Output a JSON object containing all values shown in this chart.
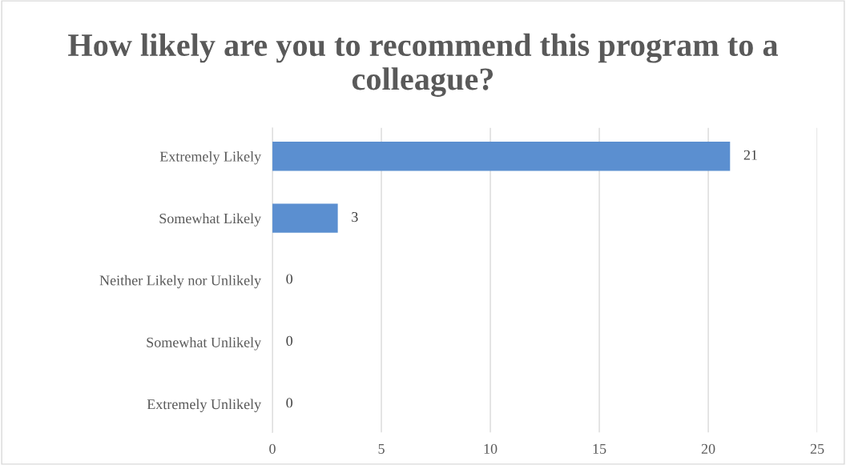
{
  "chart_data": {
    "type": "bar",
    "orientation": "horizontal",
    "title": "How likely are you to recommend this program to a colleague?",
    "categories": [
      "Extremely Likely",
      "Somewhat Likely",
      "Neither Likely nor Unlikely",
      "Somewhat Unlikely",
      "Extremely Unlikely"
    ],
    "values": [
      21,
      3,
      0,
      0,
      0
    ],
    "color": "#5b8fd0",
    "xlim": [
      0,
      25
    ],
    "xticks": [
      0,
      5,
      10,
      15,
      20,
      25
    ],
    "grid": "x",
    "data_labels": true,
    "legend": false
  }
}
